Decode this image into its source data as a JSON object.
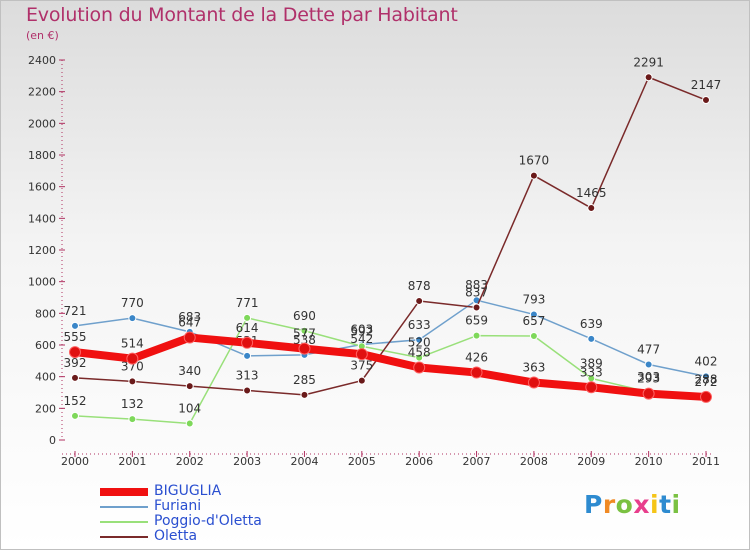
{
  "title": "Evolution du Montant de la Dette par Habitant",
  "unit": "(en €)",
  "chart_data": {
    "type": "line",
    "title": "Evolution du Montant de la Dette par Habitant",
    "subtitle": "(en €)",
    "x": [
      "2000",
      "2001",
      "2002",
      "2003",
      "2004",
      "2005",
      "2006",
      "2007",
      "2008",
      "2009",
      "2010",
      "2011"
    ],
    "ylim": [
      0,
      2400
    ],
    "yticks": [
      0,
      200,
      400,
      600,
      800,
      1000,
      1200,
      1400,
      1600,
      1800,
      2000,
      2200,
      2400
    ],
    "grid": false,
    "legend": "bottom-left",
    "series": [
      {
        "name": "Furiani",
        "color": "#6fa0cc",
        "marker": "#3a86c8",
        "values": [
          721,
          770,
          683,
          531,
          538,
          603,
          633,
          883,
          793,
          639,
          477,
          402
        ]
      },
      {
        "name": "Poggio-d'Oletta",
        "color": "#99e07a",
        "marker": "#7ed85a",
        "values": [
          152,
          132,
          104,
          771,
          690,
          592,
          520,
          659,
          657,
          389,
          303,
          288
        ]
      },
      {
        "name": "Oletta",
        "color": "#7a2a2a",
        "marker": "#6a1a1a",
        "values": [
          392,
          370,
          340,
          313,
          285,
          375,
          878,
          837,
          1670,
          1465,
          2291,
          2147
        ]
      },
      {
        "name": "BIGUGLIA",
        "color": "#f01010",
        "marker": "#e01010",
        "values": [
          555,
          514,
          647,
          614,
          577,
          542,
          458,
          426,
          363,
          333,
          293,
          272
        ]
      }
    ]
  },
  "legend_items": [
    {
      "label": "BIGUGLIA",
      "color": "#f01010",
      "thick": 8
    },
    {
      "label": "Furiani",
      "color": "#6fa0cc",
      "thick": 2
    },
    {
      "label": "Poggio-d'Oletta",
      "color": "#99e07a",
      "thick": 2
    },
    {
      "label": "Oletta",
      "color": "#7a2a2a",
      "thick": 2
    }
  ],
  "logo": {
    "letters": [
      "P",
      "r",
      "o",
      "x",
      "i",
      "t",
      "i"
    ],
    "colors": [
      "#2e8bd0",
      "#f08a24",
      "#7ac142",
      "#e83e8c",
      "#f5c518",
      "#2e8bd0",
      "#7ac142"
    ]
  }
}
